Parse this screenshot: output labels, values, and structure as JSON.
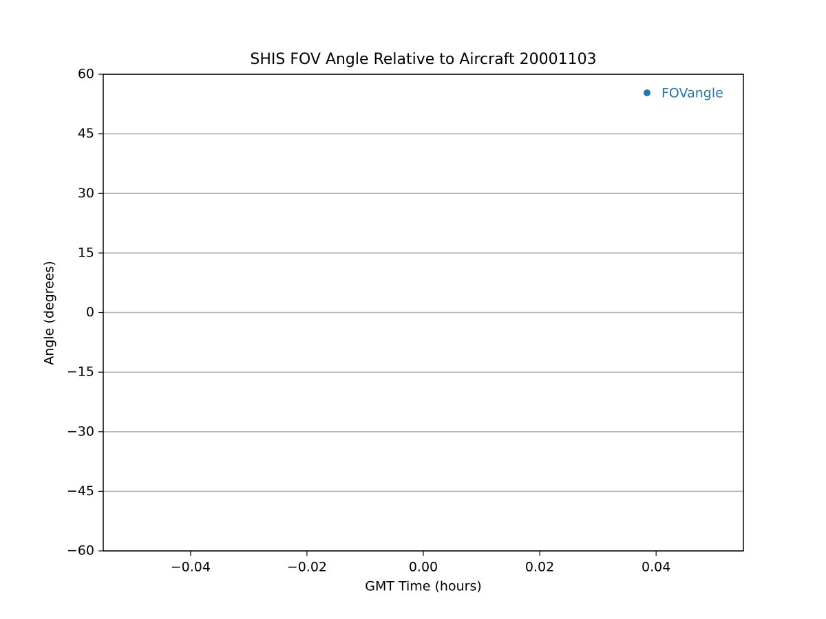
{
  "chart_data": {
    "type": "scatter",
    "title": "SHIS FOV Angle Relative to Aircraft 20001103",
    "x_label": "GMT Time (hours)",
    "y_label": "Angle (degrees)",
    "x": [],
    "series": [
      {
        "name": "FOVangle",
        "color": "#1f77b4",
        "values": []
      }
    ],
    "xlim": [
      -0.055,
      0.055
    ],
    "xticks": [
      {
        "value": -0.04,
        "label": "−0.04"
      },
      {
        "value": -0.02,
        "label": "−0.02"
      },
      {
        "value": 0,
        "label": "0.00"
      },
      0.02,
      0.04
    ],
    "ylim": [
      -60,
      60
    ],
    "yticks": [
      {
        "value": -60,
        "label": "−60"
      },
      {
        "value": -45,
        "label": "−45"
      },
      {
        "value": -30,
        "label": "−30"
      },
      {
        "value": -15,
        "label": "−15"
      },
      0,
      15,
      30,
      45,
      60
    ],
    "grid": "y",
    "legend": "upper right"
  }
}
